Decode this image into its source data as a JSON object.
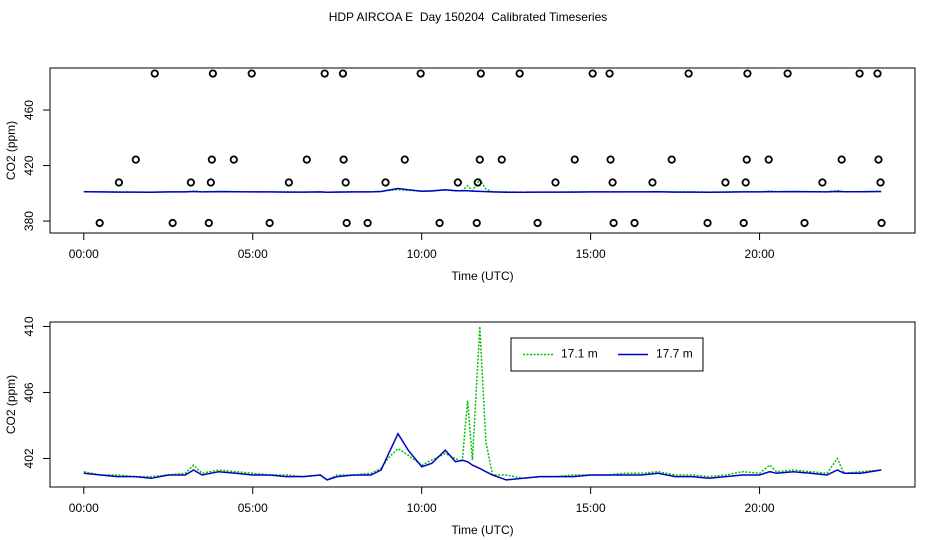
{
  "chart_data": [
    {
      "type": "line",
      "title": "HDP AIRCOA E  Day 150204  Calibrated Timeseries",
      "xlabel": "Time (UTC)",
      "ylabel": "CO2 (ppm)",
      "xlim": [
        -1.0,
        24.6
      ],
      "xticks": [
        {
          "value": 0,
          "label": "00:00"
        },
        {
          "value": 5,
          "label": "05:00"
        },
        {
          "value": 10,
          "label": "10:00"
        },
        {
          "value": 15,
          "label": "15:00"
        },
        {
          "value": 20,
          "label": "20:00"
        }
      ],
      "ylim": [
        371.4,
        490.3
      ],
      "yticks": [
        380,
        420,
        460
      ],
      "x": [
        0,
        0.5,
        1,
        1.5,
        2,
        2.5,
        3,
        3.25,
        3.5,
        4,
        4.5,
        5,
        5.5,
        6,
        6.5,
        7,
        7.2,
        7.5,
        8,
        8.5,
        8.8,
        9,
        9.3,
        9.6,
        10,
        10.3,
        10.7,
        11,
        11.2,
        11.36,
        11.5,
        11.72,
        11.9,
        12.1,
        12.5,
        13,
        13.5,
        14,
        14.5,
        15,
        15.5,
        16,
        16.5,
        17,
        17.5,
        18,
        18.5,
        19,
        19.5,
        20,
        20.3,
        20.5,
        21,
        21.5,
        22,
        22.3,
        22.5,
        23,
        23.6
      ],
      "series": [
        {
          "color": "#00c000",
          "linestyle": "dotted",
          "values": [
            401.2,
            401.0,
            401.0,
            400.9,
            400.9,
            401.0,
            401.1,
            401.6,
            401.1,
            401.3,
            401.2,
            401.1,
            401.0,
            401.0,
            400.9,
            401.0,
            400.7,
            401.0,
            401.0,
            401.1,
            401.4,
            402.0,
            402.6,
            402.2,
            401.6,
            401.9,
            402.3,
            402.0,
            401.8,
            405.5,
            401.9,
            410.0,
            403.0,
            401.0,
            401.0,
            400.8,
            400.9,
            400.9,
            401.0,
            401.0,
            401.0,
            401.1,
            401.1,
            401.2,
            401.0,
            401.0,
            400.9,
            401.0,
            401.2,
            401.1,
            401.6,
            401.2,
            401.3,
            401.2,
            401.1,
            402.0,
            401.1,
            401.2,
            401.3
          ]
        },
        {
          "color": "#0000cc",
          "linestyle": "solid",
          "values": [
            401.1,
            401.0,
            400.9,
            400.9,
            400.8,
            401.0,
            401.0,
            401.3,
            401.0,
            401.2,
            401.1,
            401.0,
            401.0,
            400.9,
            400.9,
            401.0,
            400.7,
            400.9,
            401.0,
            401.0,
            401.3,
            402.2,
            403.5,
            402.5,
            401.5,
            401.7,
            402.5,
            401.8,
            401.9,
            401.8,
            401.6,
            401.4,
            401.2,
            401.0,
            400.7,
            400.8,
            400.9,
            400.9,
            400.9,
            401.0,
            401.0,
            401.0,
            401.0,
            401.1,
            400.9,
            400.9,
            400.8,
            400.9,
            401.0,
            401.0,
            401.2,
            401.1,
            401.2,
            401.1,
            401.0,
            401.3,
            401.1,
            401.1,
            401.3
          ]
        }
      ],
      "markers": {
        "color": "#000000",
        "x": [
          2.1,
          3.82,
          4.97,
          7.13,
          7.67,
          9.97,
          11.75,
          12.9,
          15.06,
          15.56,
          17.9,
          19.64,
          20.83,
          22.96,
          23.49,
          1.54,
          3.79,
          4.44,
          6.6,
          7.69,
          9.5,
          11.72,
          12.37,
          14.53,
          15.59,
          17.4,
          19.62,
          20.27,
          22.43,
          23.52,
          1.04,
          3.17,
          3.76,
          6.07,
          7.75,
          8.93,
          11.07,
          11.66,
          13.96,
          15.65,
          16.83,
          18.99,
          19.59,
          21.86,
          23.58,
          0.47,
          2.63,
          3.7,
          5.5,
          7.78,
          8.4,
          10.53,
          11.63,
          13.43,
          15.68,
          16.3,
          18.46,
          19.53,
          21.33,
          23.61
        ],
        "y": [
          486.3,
          486.3,
          486.3,
          486.3,
          486.3,
          486.3,
          486.3,
          486.3,
          486.3,
          486.3,
          486.3,
          486.3,
          486.3,
          486.3,
          486.3,
          424.3,
          424.3,
          424.3,
          424.3,
          424.3,
          424.3,
          424.3,
          424.3,
          424.3,
          424.3,
          424.3,
          424.3,
          424.3,
          424.3,
          424.3,
          407.8,
          407.8,
          407.8,
          407.8,
          407.8,
          407.8,
          407.8,
          407.8,
          407.8,
          407.8,
          407.8,
          407.8,
          407.8,
          407.8,
          407.8,
          378.6,
          378.6,
          378.6,
          378.6,
          378.6,
          378.6,
          378.6,
          378.6,
          378.6,
          378.6,
          378.6,
          378.6,
          378.6,
          378.6,
          378.6
        ]
      }
    },
    {
      "type": "line",
      "xlabel": "Time (UTC)",
      "ylabel": "CO2 (ppm)",
      "xlim": [
        -1.0,
        24.6
      ],
      "xticks": [
        {
          "value": 0,
          "label": "00:00"
        },
        {
          "value": 5,
          "label": "05:00"
        },
        {
          "value": 10,
          "label": "10:00"
        },
        {
          "value": 15,
          "label": "15:00"
        },
        {
          "value": 20,
          "label": "20:00"
        }
      ],
      "ylim": [
        400.27,
        410.27
      ],
      "yticks": [
        402,
        406,
        410
      ],
      "legend": "top-right",
      "x": [
        0,
        0.5,
        1,
        1.5,
        2,
        2.5,
        3,
        3.25,
        3.5,
        4,
        4.5,
        5,
        5.5,
        6,
        6.5,
        7,
        7.2,
        7.5,
        8,
        8.5,
        8.8,
        9,
        9.3,
        9.6,
        10,
        10.3,
        10.7,
        11,
        11.2,
        11.36,
        11.5,
        11.72,
        11.9,
        12.1,
        12.5,
        13,
        13.5,
        14,
        14.5,
        15,
        15.5,
        16,
        16.5,
        17,
        17.5,
        18,
        18.5,
        19,
        19.5,
        20,
        20.3,
        20.5,
        21,
        21.5,
        22,
        22.3,
        22.5,
        23,
        23.6
      ],
      "series": [
        {
          "name": "17.1 m",
          "color": "#00c000",
          "linestyle": "dotted",
          "values": [
            401.2,
            401.0,
            401.0,
            400.9,
            400.9,
            401.0,
            401.1,
            401.6,
            401.1,
            401.3,
            401.2,
            401.1,
            401.0,
            401.0,
            400.9,
            401.0,
            400.7,
            401.0,
            401.0,
            401.1,
            401.4,
            402.0,
            402.6,
            402.2,
            401.6,
            401.9,
            402.3,
            402.0,
            401.8,
            405.5,
            401.9,
            410.0,
            403.0,
            401.0,
            401.0,
            400.8,
            400.9,
            400.9,
            401.0,
            401.0,
            401.0,
            401.1,
            401.1,
            401.2,
            401.0,
            401.0,
            400.9,
            401.0,
            401.2,
            401.1,
            401.6,
            401.2,
            401.3,
            401.2,
            401.1,
            402.0,
            401.1,
            401.2,
            401.3
          ]
        },
        {
          "name": "17.7 m",
          "color": "#0000cc",
          "linestyle": "solid",
          "values": [
            401.1,
            401.0,
            400.9,
            400.9,
            400.8,
            401.0,
            401.0,
            401.3,
            401.0,
            401.2,
            401.1,
            401.0,
            401.0,
            400.9,
            400.9,
            401.0,
            400.7,
            400.9,
            401.0,
            401.0,
            401.3,
            402.2,
            403.5,
            402.5,
            401.5,
            401.7,
            402.5,
            401.8,
            401.9,
            401.8,
            401.6,
            401.4,
            401.2,
            401.0,
            400.7,
            400.8,
            400.9,
            400.9,
            400.9,
            401.0,
            401.0,
            401.0,
            401.0,
            401.1,
            400.9,
            400.9,
            400.8,
            400.9,
            401.0,
            401.0,
            401.2,
            401.1,
            401.2,
            401.1,
            401.0,
            401.3,
            401.1,
            401.1,
            401.3
          ]
        }
      ]
    }
  ]
}
